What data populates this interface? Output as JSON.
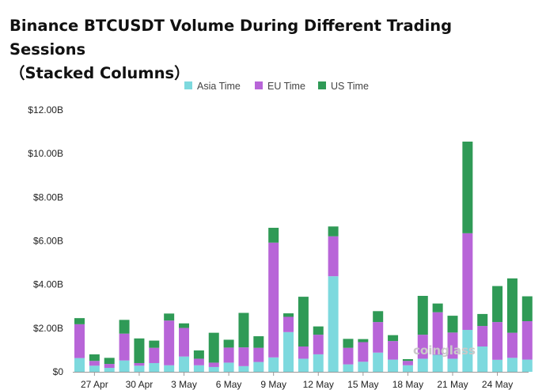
{
  "colors": {
    "asia": "#7dd9de",
    "eu": "#b865d8",
    "us": "#2f9a56",
    "axis": "#999999",
    "watermark": "#c8c8c8"
  },
  "watermark": "coinglass",
  "chart_data": {
    "type": "bar",
    "stacked": true,
    "title": "Binance BTCUSDT Volume During Different Trading Sessions\n（Stacked Columns）",
    "xlabel": "",
    "ylabel": "",
    "ylim": [
      0,
      12000000000
    ],
    "yticks": [
      0,
      2000000000,
      4000000000,
      6000000000,
      8000000000,
      10000000000,
      12000000000
    ],
    "ytick_labels": [
      "$0",
      "$2.00B",
      "$4.00B",
      "$6.00B",
      "$8.00B",
      "$10.00B",
      "$12.00B"
    ],
    "grid": false,
    "legend_position": "top-center",
    "categories": [
      "26 Apr",
      "27 Apr",
      "28 Apr",
      "29 Apr",
      "30 Apr",
      "1 May",
      "2 May",
      "3 May",
      "4 May",
      "5 May",
      "6 May",
      "7 May",
      "8 May",
      "9 May",
      "10 May",
      "11 May",
      "12 May",
      "13 May",
      "14 May",
      "15 May",
      "16 May",
      "17 May",
      "18 May",
      "19 May",
      "20 May",
      "21 May",
      "22 May",
      "23 May",
      "24 May",
      "25 May",
      "26 May"
    ],
    "xtick_labels": [
      "27 Apr",
      "30 Apr",
      "3 May",
      "6 May",
      "9 May",
      "12 May",
      "15 May",
      "18 May",
      "21 May",
      "24 May"
    ],
    "series": [
      {
        "name": "Asia Time",
        "color_key": "asia",
        "values": [
          630000000,
          280000000,
          180000000,
          520000000,
          280000000,
          400000000,
          300000000,
          700000000,
          300000000,
          220000000,
          420000000,
          260000000,
          450000000,
          660000000,
          1820000000,
          600000000,
          800000000,
          4380000000,
          340000000,
          460000000,
          880000000,
          560000000,
          300000000,
          600000000,
          780000000,
          600000000,
          1920000000,
          1160000000,
          550000000,
          640000000,
          560000000
        ]
      },
      {
        "name": "EU Time",
        "color_key": "eu",
        "values": [
          1550000000,
          220000000,
          180000000,
          1230000000,
          120000000,
          700000000,
          2050000000,
          1310000000,
          300000000,
          200000000,
          690000000,
          860000000,
          650000000,
          5260000000,
          700000000,
          560000000,
          900000000,
          1830000000,
          760000000,
          900000000,
          1400000000,
          850000000,
          200000000,
          1100000000,
          1950000000,
          1200000000,
          4430000000,
          940000000,
          1730000000,
          1150000000,
          1760000000
        ]
      },
      {
        "name": "US Time",
        "color_key": "us",
        "values": [
          280000000,
          300000000,
          280000000,
          630000000,
          1130000000,
          330000000,
          320000000,
          210000000,
          380000000,
          1370000000,
          360000000,
          1580000000,
          530000000,
          680000000,
          160000000,
          2280000000,
          380000000,
          450000000,
          410000000,
          140000000,
          500000000,
          270000000,
          80000000,
          1780000000,
          400000000,
          770000000,
          4200000000,
          550000000,
          1650000000,
          2490000000,
          1140000000
        ]
      }
    ]
  }
}
